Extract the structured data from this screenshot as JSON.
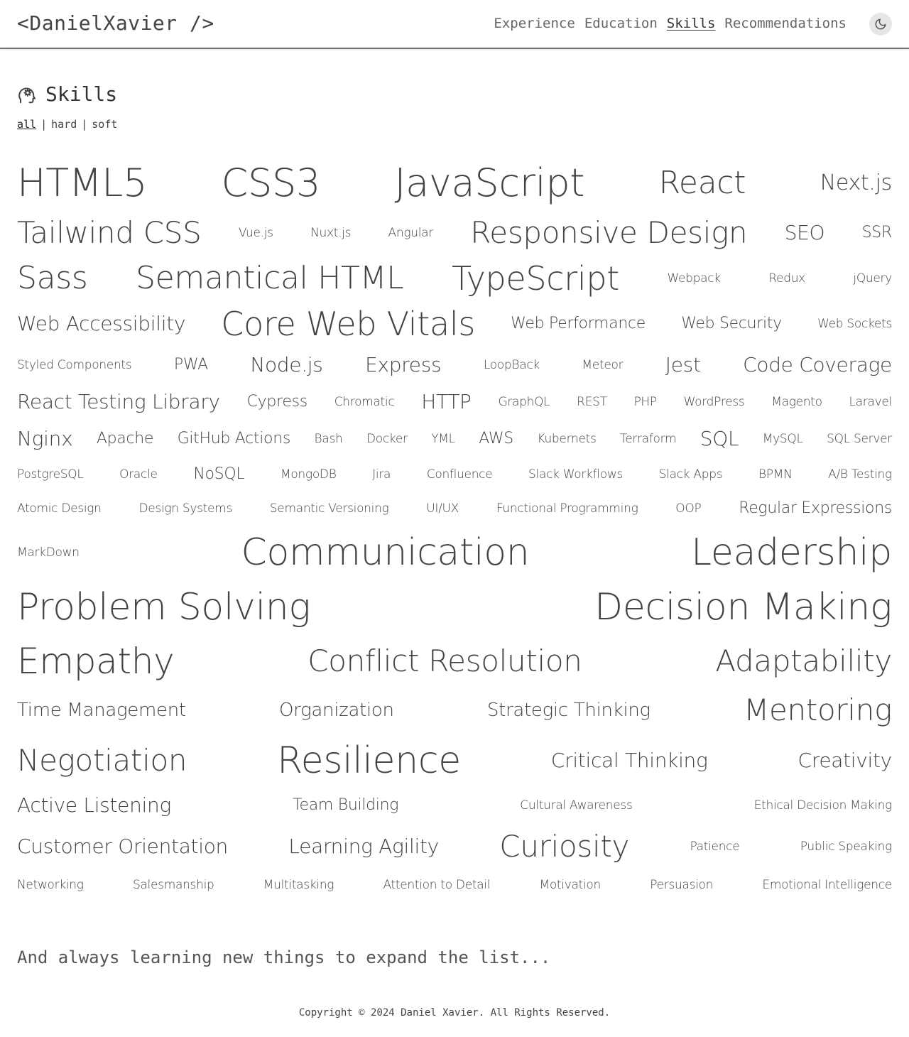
{
  "header": {
    "logo": "<DanielXavier />",
    "nav": [
      {
        "label": "Experience",
        "active": false
      },
      {
        "label": "Education",
        "active": false
      },
      {
        "label": "Skills",
        "active": true
      },
      {
        "label": "Recommendations",
        "active": false
      }
    ],
    "theme_icon": "moon-icon"
  },
  "section": {
    "icon": "head-gear-icon",
    "title": "Skills",
    "filters": [
      {
        "label": "all",
        "active": true
      },
      {
        "label": "hard",
        "active": false
      },
      {
        "label": "soft",
        "active": false
      }
    ],
    "filter_separator": "|"
  },
  "skills": [
    [
      "HTML5",
      "CSS3",
      "JavaScript",
      "React",
      "Next.js"
    ],
    [
      "Tailwind CSS",
      "Vue.js",
      "Nuxt.js",
      "Angular",
      "Responsive Design",
      "SEO",
      "SSR"
    ],
    [
      "Sass",
      "Semantical HTML",
      "TypeScript",
      "Webpack",
      "Redux",
      "jQuery"
    ],
    [
      "Web Accessibility",
      "Core Web Vitals",
      "Web Performance",
      "Web Security",
      "Web Sockets"
    ],
    [
      "Styled Components",
      "PWA",
      "Node.js",
      "Express",
      "LoopBack",
      "Meteor",
      "Jest",
      "Code Coverage"
    ],
    [
      "React Testing Library",
      "Cypress",
      "Chromatic",
      "HTTP",
      "GraphQL",
      "REST",
      "PHP",
      "WordPress",
      "Magento",
      "Laravel"
    ],
    [
      "Nginx",
      "Apache",
      "GitHub Actions",
      "Bash",
      "Docker",
      "YML",
      "AWS",
      "Kubernets",
      "Terraform",
      "SQL",
      "MySQL",
      "SQL Server"
    ],
    [
      "PostgreSQL",
      "Oracle",
      "NoSQL",
      "MongoDB",
      "Jira",
      "Confluence",
      "Slack Workflows",
      "Slack Apps",
      "BPMN",
      "A/B Testing"
    ],
    [
      "Atomic Design",
      "Design Systems",
      "Semantic Versioning",
      "UI/UX",
      "Functional Programming",
      "OOP",
      "Regular Expressions"
    ],
    [
      "MarkDown",
      "Communication",
      "Leadership"
    ],
    [
      "Problem Solving",
      "Decision Making"
    ],
    [
      "Empathy",
      "Conflict Resolution",
      "Adaptability"
    ],
    [
      "Time Management",
      "Organization",
      "Strategic Thinking",
      "Mentoring"
    ],
    [
      "Negotiation",
      "Resilience",
      "Critical Thinking",
      "Creativity"
    ],
    [
      "Active Listening",
      "Team Building",
      "Cultural Awareness",
      "Ethical Decision Making"
    ],
    [
      "Customer Orientation",
      "Learning Agility",
      "Curiosity",
      "Patience",
      "Public Speaking"
    ],
    [
      "Networking",
      "Salesmanship",
      "Multitasking",
      "Attention to Detail",
      "Motivation",
      "Persuasion",
      "Emotional Intelligence"
    ]
  ],
  "outro": "And always learning new things to expand the list...",
  "footer": "Copyright © 2024 Daniel Xavier. All Rights Reserved."
}
